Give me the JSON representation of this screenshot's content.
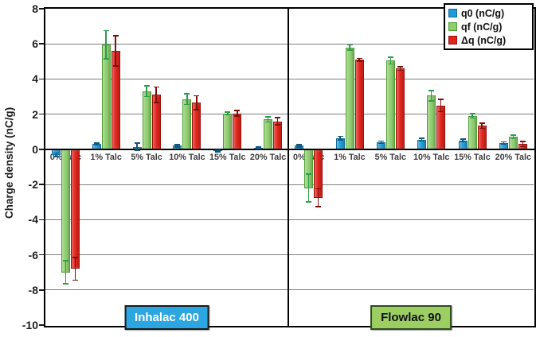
{
  "chart_data": {
    "type": "bar",
    "title": "",
    "ylabel": "Charge density (nC/g)",
    "xlabel": "",
    "grid": true,
    "legend_position": "top-right",
    "y_axis": {
      "min": -10,
      "max": 8,
      "ticks": [
        8,
        6,
        4,
        2,
        0,
        -2,
        -4,
        -6,
        -8,
        -10
      ]
    },
    "categories": [
      "0% Talc",
      "1% Talc",
      "5% Talc",
      "10% Talc",
      "15% Talc",
      "20% Talc"
    ],
    "series_meta": [
      {
        "key": "q0",
        "name": "q0 (nC/g)",
        "fill": "#209bd8",
        "edge": "#146d9e",
        "err": "#10567d"
      },
      {
        "key": "qf",
        "name": "qf (nC/g)",
        "fill": "#8ecd6d",
        "edge": "#4f9e35",
        "err": "#2b9e4d"
      },
      {
        "key": "dq",
        "name": "Δq (nC/g)",
        "fill": "#e0241c",
        "edge": "#9a120d",
        "err": "#7d100b"
      }
    ],
    "panels": [
      {
        "label": "Inhalac 400",
        "badge_bg": "#2ca6e0",
        "badge_border": "#1a1a1a",
        "badge_text_color": "#ffffff",
        "series": [
          {
            "name": "q0 (nC/g)",
            "values": [
              -0.3,
              0.3,
              0.15,
              0.2,
              -0.1,
              0.08
            ],
            "errors": [
              0.1,
              0.05,
              0.2,
              0.07,
              0.05,
              0.05
            ]
          },
          {
            "name": "qf (nC/g)",
            "values": [
              -7.0,
              5.95,
              3.3,
              2.85,
              2.05,
              1.7
            ],
            "errors": [
              0.65,
              0.8,
              0.3,
              0.3,
              0.08,
              0.15
            ]
          },
          {
            "name": "Δq (nC/g)",
            "values": [
              -6.8,
              5.6,
              3.1,
              2.65,
              2.05,
              1.6
            ],
            "errors": [
              0.65,
              0.85,
              0.45,
              0.4,
              0.15,
              0.2
            ]
          }
        ]
      },
      {
        "label": "Flowlac 90",
        "badge_bg": "#9cce62",
        "badge_border": "#2d4a21",
        "badge_text_color": "#111111",
        "series": [
          {
            "name": "q0 (nC/g)",
            "values": [
              0.2,
              0.65,
              0.4,
              0.55,
              0.5,
              0.35
            ],
            "errors": [
              0.07,
              0.1,
              0.07,
              0.08,
              0.07,
              0.07
            ]
          },
          {
            "name": "qf (nC/g)",
            "values": [
              -2.2,
              5.8,
              5.05,
              3.05,
              1.9,
              0.7
            ],
            "errors": [
              0.8,
              0.15,
              0.2,
              0.3,
              0.12,
              0.1
            ]
          },
          {
            "name": "Δq (nC/g)",
            "values": [
              -2.75,
              5.1,
              4.6,
              2.5,
              1.35,
              0.3
            ],
            "errors": [
              0.5,
              0.08,
              0.1,
              0.35,
              0.15,
              0.15
            ]
          }
        ]
      }
    ],
    "axis_colors": {
      "grid": "#7f7f7f",
      "axis": "#000000",
      "tick_label": "#1f1f1f",
      "category_label": "#3d3d3d"
    }
  }
}
